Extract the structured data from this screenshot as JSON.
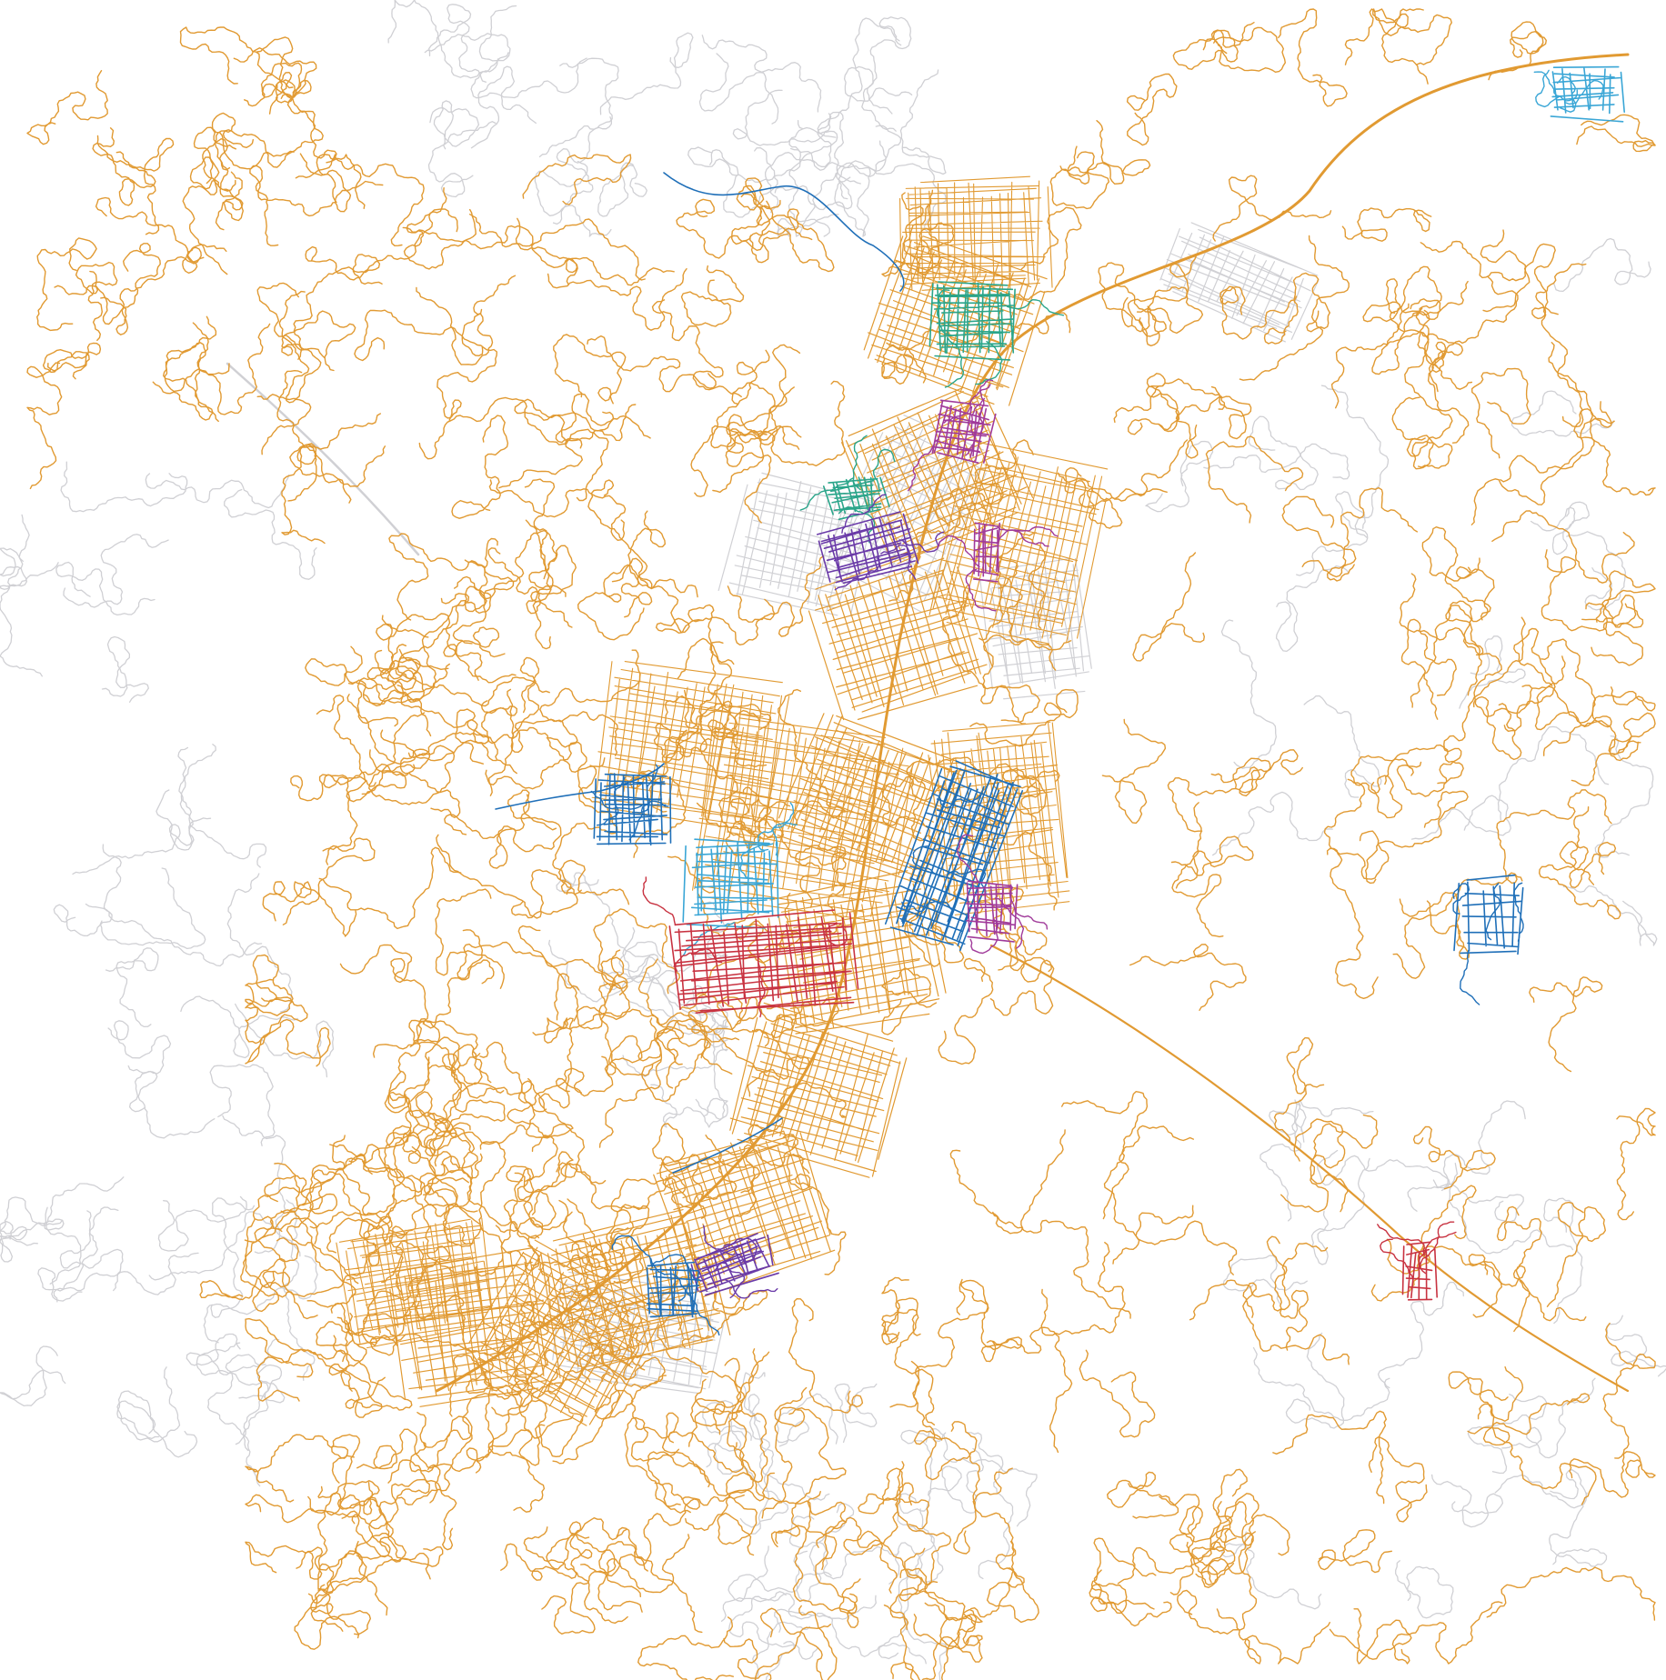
{
  "map": {
    "background": "#ffffff",
    "palette": {
      "unclassified": "#d0d0d4",
      "main_network": "#e19a32",
      "cluster_teal": "#2aa58a",
      "cluster_magenta": "#a03a9a",
      "cluster_purple": "#6a3aa8",
      "cluster_blue": "#1f6fb8",
      "cluster_lightblue": "#3aa6d6",
      "cluster_red": "#c83240"
    },
    "clusters": [
      {
        "id": "teal-north",
        "color_key": "cluster_teal"
      },
      {
        "id": "magenta-north",
        "color_key": "cluster_magenta"
      },
      {
        "id": "teal-west-north",
        "color_key": "cluster_teal"
      },
      {
        "id": "purple-west-north",
        "color_key": "cluster_purple"
      },
      {
        "id": "magenta-east-north",
        "color_key": "cluster_magenta"
      },
      {
        "id": "blue-east-center",
        "color_key": "cluster_blue"
      },
      {
        "id": "blue-west-center",
        "color_key": "cluster_blue"
      },
      {
        "id": "lightblue-center",
        "color_key": "cluster_lightblue"
      },
      {
        "id": "red-center",
        "color_key": "cluster_red"
      },
      {
        "id": "magenta-east-center",
        "color_key": "cluster_magenta"
      },
      {
        "id": "purple-south",
        "color_key": "cluster_purple"
      },
      {
        "id": "blue-south",
        "color_key": "cluster_blue"
      },
      {
        "id": "lightblue-northeast",
        "color_key": "cluster_lightblue"
      },
      {
        "id": "blue-east",
        "color_key": "cluster_blue"
      },
      {
        "id": "red-east",
        "color_key": "cluster_red"
      }
    ]
  }
}
